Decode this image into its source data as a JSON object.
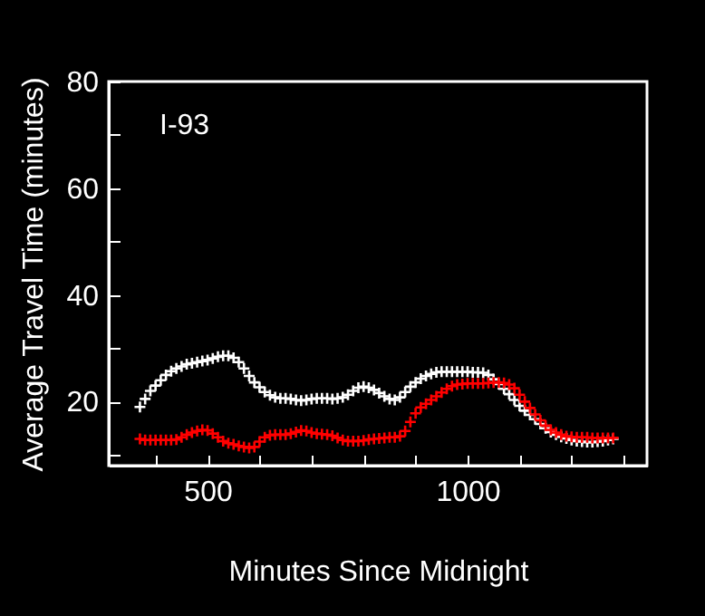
{
  "chart_data": {
    "type": "scatter",
    "xlabel": "Minutes Since Midnight",
    "ylabel": "Average Travel Time (minutes)",
    "annotations": [
      "I-93"
    ],
    "x": [
      370,
      380,
      390,
      400,
      410,
      420,
      430,
      440,
      450,
      460,
      470,
      480,
      490,
      500,
      510,
      520,
      530,
      540,
      550,
      560,
      570,
      580,
      590,
      600,
      610,
      620,
      630,
      640,
      650,
      660,
      670,
      680,
      690,
      700,
      710,
      720,
      730,
      740,
      750,
      760,
      770,
      780,
      790,
      800,
      810,
      820,
      830,
      840,
      850,
      860,
      870,
      880,
      890,
      900,
      910,
      920,
      930,
      940,
      950,
      960,
      970,
      980,
      990,
      1000,
      1010,
      1020,
      1030,
      1040,
      1050,
      1060,
      1070,
      1080,
      1090,
      1100,
      1110,
      1120,
      1130,
      1140,
      1150,
      1160,
      1170,
      1180,
      1190,
      1200,
      1210,
      1220,
      1230,
      1240,
      1250,
      1260,
      1270,
      1280
    ],
    "series": [
      {
        "color": "#ffffff",
        "values": [
          19,
          20.5,
          22,
          23,
          24,
          25,
          25.7,
          26.2,
          26.6,
          27,
          27.2,
          27.4,
          27.6,
          27.8,
          28.1,
          28.4,
          28.6,
          28.6,
          28.2,
          27.4,
          26.2,
          24.8,
          23.6,
          22.7,
          21.8,
          21.2,
          20.8,
          20.6,
          20.6,
          20.5,
          20.3,
          20.2,
          20.3,
          20.5,
          20.6,
          20.6,
          20.6,
          20.5,
          20.6,
          20.8,
          21.3,
          22,
          22.6,
          22.8,
          22.6,
          22.2,
          21.6,
          21,
          20.5,
          20.3,
          20.8,
          21.8,
          22.8,
          23.6,
          24.3,
          24.8,
          25.2,
          25.5,
          25.6,
          25.6,
          25.6,
          25.6,
          25.6,
          25.6,
          25.5,
          25.5,
          25.4,
          25,
          24.2,
          23.3,
          22.4,
          21.4,
          20.3,
          19.2,
          18.3,
          17.5,
          16.7,
          15.8,
          15,
          14.3,
          13.8,
          13.4,
          13.1,
          12.8,
          12.6,
          12.5,
          12.4,
          12.4,
          12.5,
          12.6,
          12.8,
          13
        ]
      },
      {
        "color": "#ff0000",
        "values": [
          13,
          12.8,
          12.8,
          12.8,
          12.8,
          12.8,
          12.8,
          12.9,
          13.3,
          13.8,
          14.2,
          14.5,
          14.7,
          14.6,
          14,
          13.3,
          12.6,
          12.2,
          12,
          11.7,
          11.5,
          11.3,
          11.5,
          12.5,
          13.3,
          13.7,
          13.8,
          13.8,
          13.8,
          14,
          14.3,
          14.6,
          14.5,
          14.2,
          14,
          13.9,
          13.8,
          13.6,
          13.2,
          12.8,
          12.6,
          12.6,
          12.6,
          12.7,
          12.9,
          13,
          13.1,
          13.2,
          13.3,
          13.3,
          13.5,
          14.5,
          16.2,
          17.8,
          18.9,
          19.6,
          20.3,
          21,
          21.7,
          22.4,
          22.9,
          23.2,
          23.3,
          23.4,
          23.4,
          23.4,
          23.4,
          23.5,
          23.6,
          23.6,
          23.5,
          23.2,
          22.5,
          21.3,
          20,
          18.8,
          17.6,
          16.5,
          15.5,
          14.7,
          14.2,
          13.8,
          13.5,
          13.4,
          13.3,
          13.3,
          13.3,
          13.2,
          13.2,
          13.2,
          13.2,
          13.2
        ]
      }
    ],
    "xlim": [
      310,
      1345
    ],
    "xticks": [
      {
        "value": 400,
        "label": null
      },
      500,
      {
        "value": 600,
        "label": null
      },
      {
        "value": 700,
        "label": null
      },
      {
        "value": 800,
        "label": null
      },
      {
        "value": 900,
        "label": null
      },
      1000,
      {
        "value": 1100,
        "label": null
      },
      {
        "value": 1200,
        "label": null
      },
      {
        "value": 1300,
        "label": null
      }
    ],
    "ylim": [
      8,
      80
    ],
    "yticks": [
      {
        "value": 10,
        "label": null
      },
      20,
      {
        "value": 30,
        "label": null
      },
      40,
      {
        "value": 50,
        "label": null
      },
      60,
      {
        "value": 70,
        "label": null
      },
      80
    ],
    "marker": "cross"
  }
}
